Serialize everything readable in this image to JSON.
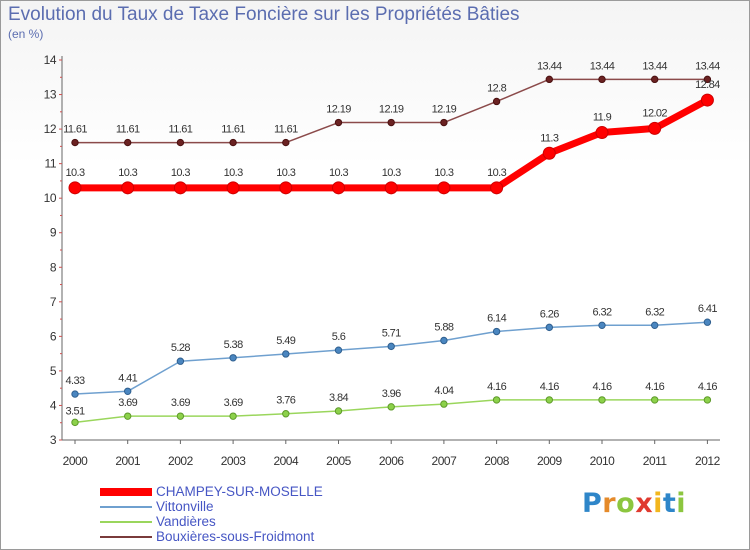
{
  "title": "Evolution du Taux de Taxe Foncière sur les Propriétés Bâties",
  "subtitle": "(en %)",
  "logo": {
    "text": "Proxiti",
    "letters": [
      {
        "ch": "P",
        "color": "#2e86c9"
      },
      {
        "ch": "r",
        "color": "#e58a2a"
      },
      {
        "ch": "o",
        "color": "#8cc63f"
      },
      {
        "ch": "x",
        "color": "#e03a2f"
      },
      {
        "ch": "i",
        "color": "#f2b61d"
      },
      {
        "ch": "t",
        "color": "#2e86c9"
      },
      {
        "ch": "i",
        "color": "#8cc63f"
      }
    ]
  },
  "chart_data": {
    "type": "line",
    "title": "Evolution du Taux de Taxe Foncière sur les Propriétés Bâties",
    "ylabel": "(en %)",
    "xlabel": "",
    "x": [
      "2000",
      "2001",
      "2002",
      "2003",
      "2004",
      "2005",
      "2006",
      "2007",
      "2008",
      "2009",
      "2010",
      "2011",
      "2012"
    ],
    "ylim": [
      3,
      14
    ],
    "yticks": [
      "3",
      "4",
      "5",
      "6",
      "7",
      "8",
      "9",
      "10",
      "11",
      "12",
      "13",
      "14"
    ],
    "grid": false,
    "legend_position": "bottom-left",
    "series": [
      {
        "name": "CHAMPEY-SUR-MOSELLE",
        "color": "#ff0000",
        "values": [
          10.3,
          10.3,
          10.3,
          10.3,
          10.3,
          10.3,
          10.3,
          10.3,
          10.3,
          11.3,
          11.9,
          12.02,
          12.84
        ],
        "labels": [
          "10.3",
          "10.3",
          "10.3",
          "10.3",
          "10.3",
          "10.3",
          "10.3",
          "10.3",
          "10.3",
          "11.3",
          "11.9",
          "12.02",
          "12.84"
        ]
      },
      {
        "name": "Vittonville",
        "color": "#6fa0cf",
        "values": [
          4.33,
          4.41,
          5.28,
          5.38,
          5.49,
          5.6,
          5.71,
          5.88,
          6.14,
          6.26,
          6.32,
          6.32,
          6.41
        ],
        "labels": [
          "4.33",
          "4.41",
          "5.28",
          "5.38",
          "5.49",
          "5.6",
          "5.71",
          "5.88",
          "6.14",
          "6.26",
          "6.32",
          "6.32",
          "6.41"
        ]
      },
      {
        "name": "Vandières",
        "color": "#9ad65c",
        "values": [
          3.51,
          3.69,
          3.69,
          3.69,
          3.76,
          3.84,
          3.96,
          4.04,
          4.16,
          4.16,
          4.16,
          4.16,
          4.16
        ],
        "labels": [
          "3.51",
          "3.69",
          "3.69",
          "3.69",
          "3.76",
          "3.84",
          "3.96",
          "4.04",
          "4.16",
          "4.16",
          "4.16",
          "4.16",
          "4.16"
        ]
      },
      {
        "name": "Bouxières-sous-Froidmont",
        "color": "#7a3b3b",
        "values": [
          11.61,
          11.61,
          11.61,
          11.61,
          11.61,
          12.19,
          12.19,
          12.19,
          12.8,
          13.44,
          13.44,
          13.44,
          13.44
        ],
        "labels": [
          "11.61",
          "11.61",
          "11.61",
          "11.61",
          "11.61",
          "12.19",
          "12.19",
          "12.19",
          "12.8",
          "13.44",
          "13.44",
          "13.44",
          "13.44"
        ]
      }
    ]
  }
}
